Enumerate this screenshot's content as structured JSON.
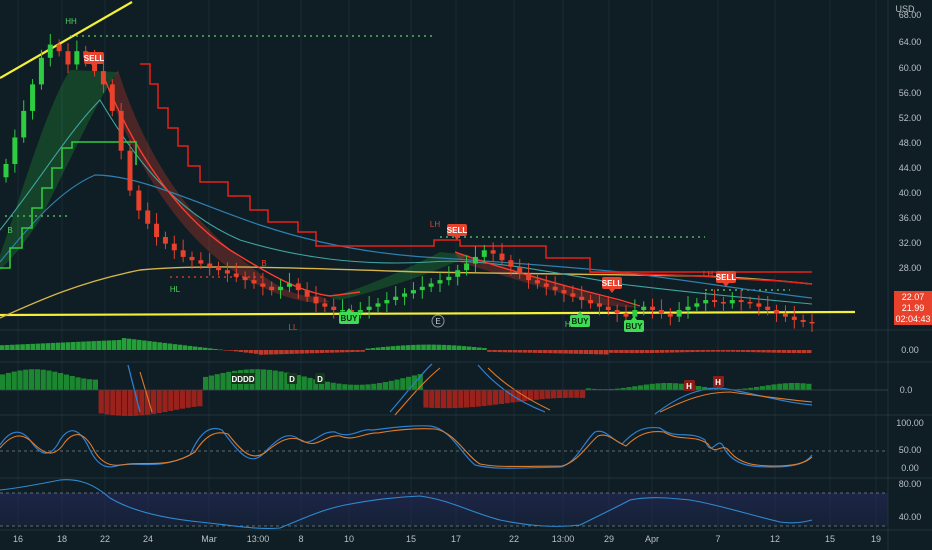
{
  "currency": "USD",
  "price_axis": {
    "ticks": [
      "68.00",
      "64.00",
      "60.00",
      "56.00",
      "52.00",
      "48.00",
      "44.00",
      "40.00",
      "36.00",
      "32.00",
      "28.00",
      "24.00"
    ],
    "last_price": "22.07",
    "open_price": "21.99",
    "countdown": "02:04:43"
  },
  "x_axis": {
    "ticks": [
      "16",
      "18",
      "22",
      "24",
      "Mar",
      "13:00",
      "8",
      "10",
      "15",
      "17",
      "22",
      "13:00",
      "29",
      "Apr",
      "7",
      "12",
      "15",
      "19"
    ]
  },
  "signals": [
    {
      "label": "SELL",
      "type": "sell"
    },
    {
      "label": "SELL",
      "type": "sell"
    },
    {
      "label": "SELL",
      "type": "sell"
    },
    {
      "label": "SELL",
      "type": "sell"
    },
    {
      "label": "BUY",
      "type": "buy"
    },
    {
      "label": "BUY",
      "type": "buy"
    },
    {
      "label": "BUY",
      "type": "buy"
    }
  ],
  "structure_labels": [
    "HH",
    "B",
    "HL",
    "B",
    "LL",
    "LH",
    "HL",
    "LH",
    "E"
  ],
  "osc_labels": [
    "DDDD",
    "D",
    "D",
    "H",
    "H"
  ],
  "panel_axes": {
    "macd": [
      "0.00"
    ],
    "histo": [
      "0.0"
    ],
    "stoch": [
      "100.00",
      "50.00",
      "0.00"
    ],
    "rsi": [
      "80.00",
      "40.00"
    ]
  },
  "colors": {
    "background": "#0f1d24",
    "up": "#2ecc40",
    "down": "#e8412c",
    "support": "#f4f03a",
    "ema": "#d6b54a"
  },
  "chart_data": {
    "type": "candlestick",
    "currency": "USD",
    "price_range": [
      22,
      69
    ],
    "close_series": [
      46,
      50,
      54,
      58,
      62,
      64,
      63,
      61,
      63,
      62,
      60,
      58,
      54,
      48,
      42,
      39,
      37,
      35,
      34,
      33,
      32,
      31.5,
      31,
      30.5,
      30,
      29.5,
      29,
      28.5,
      28,
      27.5,
      27,
      27.5,
      28,
      27,
      26,
      25,
      24.5,
      24,
      24,
      23.5,
      24,
      24.5,
      25,
      25.5,
      26,
      26.5,
      27,
      27.5,
      28,
      28.5,
      29,
      30,
      31,
      32,
      33,
      32.5,
      31.5,
      30.5,
      29.5,
      28.5,
      28,
      27.5,
      27,
      26.5,
      26,
      25.5,
      25,
      24.5,
      24,
      23.5,
      23,
      24,
      24.5,
      24,
      23.5,
      23,
      24,
      24.5,
      25,
      25.5,
      25.2,
      25,
      25.5,
      25.2,
      25,
      24.5,
      24,
      23.5,
      23,
      22.5,
      22.2,
      22
    ],
    "last_price": 22.07,
    "support_level": 22.3,
    "stop_line_start": 67,
    "stop_line_end": 26.8
  }
}
